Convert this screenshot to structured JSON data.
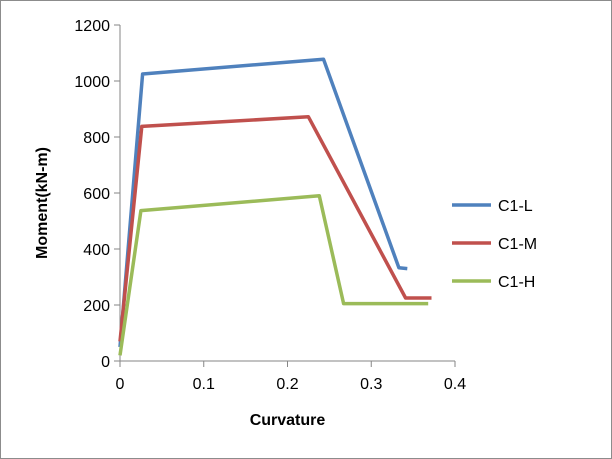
{
  "chart_data": {
    "type": "line",
    "title": "",
    "xlabel": "Curvature",
    "ylabel": "Moment(kN-m)",
    "xlim": [
      0,
      0.4
    ],
    "ylim": [
      0,
      1200
    ],
    "x_ticks": [
      "0",
      "0.1",
      "0.2",
      "0.3",
      "0.4"
    ],
    "y_ticks": [
      "0",
      "200",
      "400",
      "600",
      "800",
      "1000",
      "1200"
    ],
    "grid": false,
    "legend_position": "right",
    "series": [
      {
        "name": "C1-L",
        "color": "#4f81bd",
        "points": [
          [
            0,
            50
          ],
          [
            0.027,
            1025
          ],
          [
            0.243,
            1078
          ],
          [
            0.333,
            333
          ],
          [
            0.343,
            330
          ]
        ]
      },
      {
        "name": "C1-M",
        "color": "#c0504d",
        "points": [
          [
            0,
            70
          ],
          [
            0.026,
            838
          ],
          [
            0.225,
            872
          ],
          [
            0.341,
            225
          ],
          [
            0.372,
            225
          ]
        ]
      },
      {
        "name": "C1-H",
        "color": "#9bbb59",
        "points": [
          [
            0,
            20
          ],
          [
            0.025,
            537
          ],
          [
            0.238,
            590
          ],
          [
            0.267,
            205
          ],
          [
            0.368,
            205
          ]
        ]
      }
    ]
  }
}
